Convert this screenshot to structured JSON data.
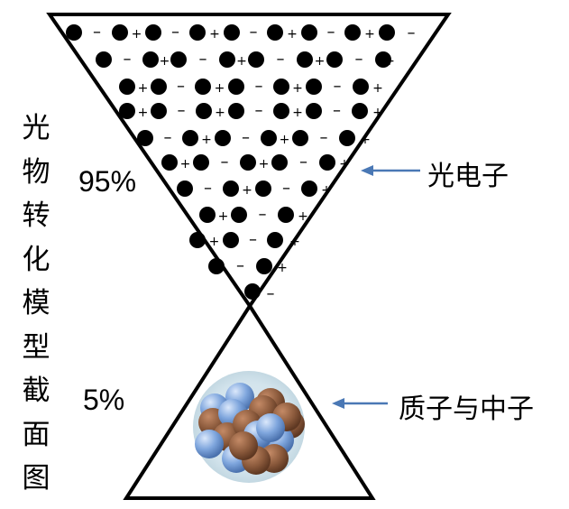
{
  "title_vertical": [
    "光",
    "物",
    "转",
    "化",
    "模",
    "型",
    "截",
    "面",
    "图"
  ],
  "upper_percent": "95%",
  "lower_percent": "5%",
  "label_photoelectron": "光电子",
  "label_nucleons": "质子与中子",
  "symbols": {
    "plus": "+",
    "minus": "–"
  },
  "colors": {
    "outline": "#000000",
    "arrow": "#4a78b5",
    "proton": "#8b5a3c",
    "neutron": "#7fa6dd",
    "nucleus_glow": "#cfe0ea"
  }
}
